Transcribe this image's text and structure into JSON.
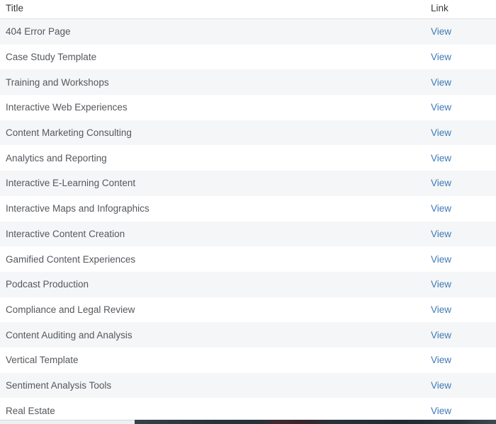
{
  "table": {
    "columns": [
      {
        "label": "Title"
      },
      {
        "label": "Link"
      }
    ],
    "rows": [
      {
        "title": "404 Error Page",
        "link": "View"
      },
      {
        "title": "Case Study Template",
        "link": "View"
      },
      {
        "title": "Training and Workshops",
        "link": "View"
      },
      {
        "title": "Interactive Web Experiences",
        "link": "View"
      },
      {
        "title": "Content Marketing Consulting",
        "link": "View"
      },
      {
        "title": "Analytics and Reporting",
        "link": "View"
      },
      {
        "title": "Interactive E-Learning Content",
        "link": "View"
      },
      {
        "title": "Interactive Maps and Infographics",
        "link": "View"
      },
      {
        "title": "Interactive Content Creation",
        "link": "View"
      },
      {
        "title": "Gamified Content Experiences",
        "link": "View"
      },
      {
        "title": "Podcast Production",
        "link": "View"
      },
      {
        "title": "Compliance and Legal Review",
        "link": "View"
      },
      {
        "title": "Content Auditing and Analysis",
        "link": "View"
      },
      {
        "title": "Vertical Template",
        "link": "View"
      },
      {
        "title": "Sentiment Analysis Tools",
        "link": "View"
      },
      {
        "title": "Real Estate",
        "link": "View"
      }
    ]
  },
  "colors": {
    "row_stripe": "#f5f6f7",
    "link_blue": "#3d7ab8",
    "header_text": "#36393d",
    "row_text": "#54585d",
    "header_border": "#dee1e4",
    "scrollbar_track": "#eef0f1",
    "scrollbar_thumb_dark": "#27323a",
    "scrollbar_thumb_red": "#3f2a31"
  }
}
